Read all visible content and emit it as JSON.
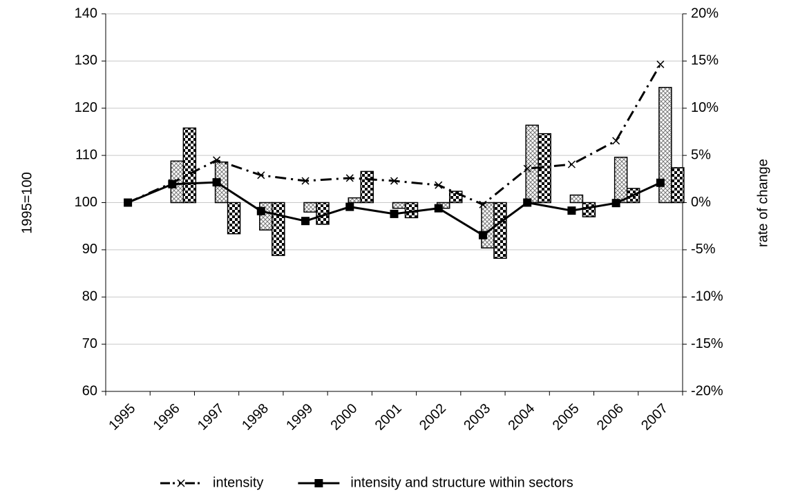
{
  "chart_data": {
    "type": "combo",
    "categories": [
      "1995",
      "1996",
      "1997",
      "1998",
      "1999",
      "2000",
      "2001",
      "2002",
      "2003",
      "2004",
      "2005",
      "2006",
      "2007"
    ],
    "y_label": "1995=100",
    "y2_label": "rate of change",
    "ylim": [
      60,
      140
    ],
    "yticks": [
      60,
      70,
      80,
      90,
      100,
      110,
      120,
      130,
      140
    ],
    "y2lim": [
      -20,
      20
    ],
    "y2ticks": [
      {
        "value": -20,
        "label": "-20%"
      },
      {
        "value": -15,
        "label": "-15%"
      },
      {
        "value": -10,
        "label": "-10%"
      },
      {
        "value": -5,
        "label": "-5%"
      },
      {
        "value": 0,
        "label": "0%"
      },
      {
        "value": 5,
        "label": "5%"
      },
      {
        "value": 10,
        "label": "10%"
      },
      {
        "value": 15,
        "label": "15%"
      },
      {
        "value": 20,
        "label": "20%"
      }
    ],
    "grid": true,
    "legend": "bottom",
    "series": [
      {
        "type": "bar",
        "axis": "y2",
        "pattern": "crosshatch",
        "values": [
          null,
          4.4,
          4.3,
          -2.9,
          -1.0,
          0.5,
          -0.6,
          -0.6,
          -4.8,
          8.2,
          0.8,
          4.8,
          12.2
        ]
      },
      {
        "type": "bar",
        "axis": "y2",
        "pattern": "checker",
        "values": [
          null,
          7.9,
          -3.3,
          -5.6,
          -2.3,
          3.3,
          -1.6,
          1.2,
          -5.9,
          7.3,
          -1.5,
          1.5,
          3.7
        ]
      },
      {
        "type": "line",
        "name": "intensity",
        "color": "#000000",
        "marker": "x",
        "dash": "dashdot",
        "values": [
          100,
          104.2,
          109.0,
          105.8,
          104.6,
          105.2,
          104.6,
          103.7,
          99.6,
          107.2,
          108.1,
          113.1,
          129.3
        ]
      },
      {
        "type": "line",
        "name": "intensity and structure within sectors",
        "color": "#000000",
        "marker": "square",
        "dash": "solid",
        "values": [
          100,
          103.9,
          104.3,
          98.2,
          96.1,
          99.1,
          97.6,
          98.8,
          93.1,
          100.0,
          98.3,
          99.9,
          104.2
        ]
      }
    ]
  }
}
